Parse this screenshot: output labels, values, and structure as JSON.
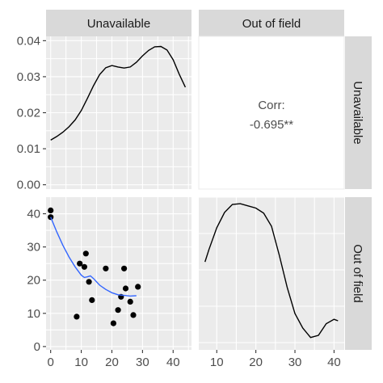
{
  "chart_data": {
    "type": "pairs-plot",
    "variables": [
      "Unavailable",
      "Out of field"
    ],
    "panels": [
      {
        "row": 0,
        "col": 0,
        "type": "density",
        "x": [
          0,
          2,
          4,
          6,
          8,
          10,
          12,
          14,
          16,
          18,
          20,
          22,
          24,
          26,
          28,
          30,
          32,
          34,
          36,
          38,
          40,
          42,
          44
        ],
        "y": [
          0.0124,
          0.0134,
          0.0146,
          0.0161,
          0.018,
          0.0206,
          0.024,
          0.0275,
          0.0306,
          0.0325,
          0.0331,
          0.0327,
          0.0324,
          0.0327,
          0.034,
          0.0358,
          0.0373,
          0.0383,
          0.0384,
          0.0374,
          0.0347,
          0.0307,
          0.0271
        ],
        "xlim": [
          -1.5,
          46
        ],
        "ylim": [
          -0.0012,
          0.0412
        ],
        "yticks": [
          "0.00",
          "0.01",
          "0.02",
          "0.03",
          "0.04"
        ]
      },
      {
        "row": 0,
        "col": 1,
        "type": "correlation",
        "label": "Corr:",
        "value": "-0.695**"
      },
      {
        "row": 1,
        "col": 0,
        "type": "scatter",
        "points": [
          {
            "x": 0,
            "y": 41
          },
          {
            "x": 0,
            "y": 39
          },
          {
            "x": 8.5,
            "y": 9
          },
          {
            "x": 9.5,
            "y": 25
          },
          {
            "x": 11,
            "y": 24
          },
          {
            "x": 11.5,
            "y": 28
          },
          {
            "x": 12.5,
            "y": 19.5
          },
          {
            "x": 13.5,
            "y": 14
          },
          {
            "x": 18,
            "y": 23.5
          },
          {
            "x": 20.5,
            "y": 7
          },
          {
            "x": 22,
            "y": 11
          },
          {
            "x": 23,
            "y": 15
          },
          {
            "x": 24,
            "y": 23.5
          },
          {
            "x": 24.5,
            "y": 17.5
          },
          {
            "x": 26,
            "y": 13.5
          },
          {
            "x": 27,
            "y": 9.5
          },
          {
            "x": 28.5,
            "y": 18
          }
        ],
        "smooth": {
          "x": [
            0,
            2,
            4,
            6,
            8,
            10,
            11,
            12,
            13,
            14,
            16,
            18,
            20,
            22,
            24,
            26,
            28
          ],
          "y": [
            39,
            34.5,
            30.5,
            27,
            24,
            21.5,
            20.8,
            21.0,
            21.3,
            20.5,
            18.5,
            17.2,
            16.2,
            15.6,
            15.4,
            15.2,
            15.3
          ]
        },
        "xlim": [
          -1.5,
          46
        ],
        "ylim": [
          -1,
          45
        ],
        "xticks": [
          "0",
          "10",
          "20",
          "30",
          "40"
        ],
        "yticks": [
          "0",
          "10",
          "20",
          "30",
          "40"
        ]
      },
      {
        "row": 1,
        "col": 1,
        "type": "density",
        "x": [
          7,
          8,
          10,
          12,
          14,
          16,
          18,
          20,
          22,
          24,
          26,
          28,
          30,
          32,
          34,
          36,
          38,
          40,
          41
        ],
        "y": [
          0.555,
          0.64,
          0.79,
          0.895,
          0.95,
          0.955,
          0.94,
          0.925,
          0.89,
          0.8,
          0.6,
          0.38,
          0.2,
          0.1,
          0.035,
          0.05,
          0.13,
          0.16,
          0.15
        ],
        "xlim": [
          5.4,
          42.6
        ],
        "xticks": [
          "10",
          "20",
          "30",
          "40"
        ]
      }
    ],
    "colors": {
      "panel_bg": "#ebebeb",
      "grid": "#ffffff",
      "strip_bg": "#d9d9d9",
      "line": "#000000",
      "smooth": "#3366ff",
      "points": "#000000"
    }
  }
}
